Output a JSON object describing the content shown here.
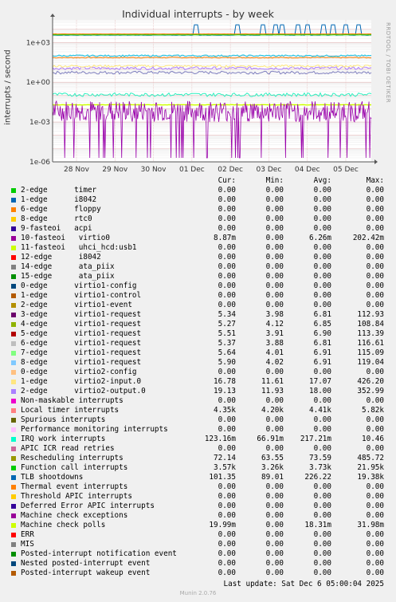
{
  "title": "Individual interrupts - by week",
  "ylabel": "interrupts / second",
  "side_label": "RRDTOOL / TOBI OETIKER",
  "legend_headers": {
    "cur": "Cur:",
    "min": "Min:",
    "avg": "Avg:",
    "max": "Max:"
  },
  "last_update": "Last update: Sat Dec  6 05:00:04 2025",
  "footer": "Munin 2.0.76",
  "chart_data": {
    "type": "line",
    "scale": "log",
    "title": "Individual interrupts - by week",
    "ylabel": "interrupts / second",
    "ylim": [
      1e-06,
      50000
    ],
    "yticks": [
      "1e+03",
      "1e+00",
      "1e-03",
      "1e-06"
    ],
    "x_ticks": [
      "28 Nov",
      "29 Nov",
      "30 Nov",
      "01 Dec",
      "02 Dec",
      "03 Dec",
      "04 Dec",
      "05 Dec"
    ],
    "grid": true,
    "levels": [
      {
        "name": "Local timer interrupts",
        "value": 4350,
        "color": "#ff8000"
      },
      {
        "name": "Rescheduling interrupts",
        "value": 72,
        "color": "#f57900"
      },
      {
        "name": "TLB shootdowns",
        "value": 101,
        "color": "#12c7e6"
      },
      {
        "name": "Function call interrupts",
        "value": 3570,
        "color": "#00cc00"
      },
      {
        "name": "virtio1-request",
        "value": 5.5,
        "color": "#8080c0"
      },
      {
        "name": "virtio2-input.0",
        "value": 16.8,
        "color": "#ffe87a"
      },
      {
        "name": "IRQ work interrupts",
        "value": 0.12,
        "color": "#2af0c0"
      },
      {
        "name": "Machine check polls",
        "value": 0.02,
        "color": "#ccff00"
      },
      {
        "name": "10-fasteoi virtio0",
        "value": 0.0063,
        "color": "#9900aa"
      }
    ]
  },
  "legend": [
    {
      "color": "#00cc00",
      "label": "2-edge      timer",
      "cur": "0.00",
      "min": "0.00",
      "avg": "0.00",
      "max": "0.00"
    },
    {
      "color": "#0066b3",
      "label": "1-edge      i8042",
      "cur": "0.00",
      "min": "0.00",
      "avg": "0.00",
      "max": "0.00"
    },
    {
      "color": "#ff8000",
      "label": "6-edge      floppy",
      "cur": "0.00",
      "min": "0.00",
      "avg": "0.00",
      "max": "0.00"
    },
    {
      "color": "#ffcc00",
      "label": "8-edge      rtc0",
      "cur": "0.00",
      "min": "0.00",
      "avg": "0.00",
      "max": "0.00"
    },
    {
      "color": "#330099",
      "label": "9-fasteoi   acpi",
      "cur": "0.00",
      "min": "0.00",
      "avg": "0.00",
      "max": "0.00"
    },
    {
      "color": "#990099",
      "label": "10-fasteoi   virtio0",
      "cur": "8.87m",
      "min": "0.00",
      "avg": "6.26m",
      "max": "202.42m"
    },
    {
      "color": "#ccff00",
      "label": "11-fasteoi   uhci_hcd:usb1",
      "cur": "0.00",
      "min": "0.00",
      "avg": "0.00",
      "max": "0.00"
    },
    {
      "color": "#ff0000",
      "label": "12-edge      i8042",
      "cur": "0.00",
      "min": "0.00",
      "avg": "0.00",
      "max": "0.00"
    },
    {
      "color": "#808080",
      "label": "14-edge      ata_piix",
      "cur": "0.00",
      "min": "0.00",
      "avg": "0.00",
      "max": "0.00"
    },
    {
      "color": "#008f00",
      "label": "15-edge      ata_piix",
      "cur": "0.00",
      "min": "0.00",
      "avg": "0.00",
      "max": "0.00"
    },
    {
      "color": "#00487d",
      "label": "0-edge      virtio1-config",
      "cur": "0.00",
      "min": "0.00",
      "avg": "0.00",
      "max": "0.00"
    },
    {
      "color": "#b35a00",
      "label": "1-edge      virtio1-control",
      "cur": "0.00",
      "min": "0.00",
      "avg": "0.00",
      "max": "0.00"
    },
    {
      "color": "#b38f00",
      "label": "2-edge      virtio1-event",
      "cur": "0.00",
      "min": "0.00",
      "avg": "0.00",
      "max": "0.00"
    },
    {
      "color": "#6b006b",
      "label": "3-edge      virtio1-request",
      "cur": "5.34",
      "min": "3.98",
      "avg": "6.81",
      "max": "112.93"
    },
    {
      "color": "#8fb300",
      "label": "4-edge      virtio1-request",
      "cur": "5.27",
      "min": "4.12",
      "avg": "6.85",
      "max": "108.84"
    },
    {
      "color": "#b30000",
      "label": "5-edge      virtio1-request",
      "cur": "5.51",
      "min": "3.91",
      "avg": "6.90",
      "max": "113.39"
    },
    {
      "color": "#bebebe",
      "label": "6-edge      virtio1-request",
      "cur": "5.37",
      "min": "3.88",
      "avg": "6.81",
      "max": "116.61"
    },
    {
      "color": "#80ff80",
      "label": "7-edge      virtio1-request",
      "cur": "5.64",
      "min": "4.01",
      "avg": "6.91",
      "max": "115.09"
    },
    {
      "color": "#80c9ff",
      "label": "8-edge      virtio1-request",
      "cur": "5.90",
      "min": "4.02",
      "avg": "6.91",
      "max": "119.04"
    },
    {
      "color": "#ffc080",
      "label": "0-edge      virtio2-config",
      "cur": "0.00",
      "min": "0.00",
      "avg": "0.00",
      "max": "0.00"
    },
    {
      "color": "#ffe680",
      "label": "1-edge      virtio2-input.0",
      "cur": "16.78",
      "min": "11.61",
      "avg": "17.07",
      "max": "426.20"
    },
    {
      "color": "#aa80ff",
      "label": "2-edge      virtio2-output.0",
      "cur": "19.13",
      "min": "11.93",
      "avg": "18.00",
      "max": "352.99"
    },
    {
      "color": "#ee00cc",
      "label": "Non-maskable interrupts",
      "cur": "0.00",
      "min": "0.00",
      "avg": "0.00",
      "max": "0.00"
    },
    {
      "color": "#ff8080",
      "label": "Local timer interrupts",
      "cur": "4.35k",
      "min": "4.20k",
      "avg": "4.41k",
      "max": "5.82k"
    },
    {
      "color": "#666600",
      "label": "Spurious interrupts",
      "cur": "0.00",
      "min": "0.00",
      "avg": "0.00",
      "max": "0.00"
    },
    {
      "color": "#ffbfff",
      "label": "Performance monitoring interrupts",
      "cur": "0.00",
      "min": "0.00",
      "avg": "0.00",
      "max": "0.00"
    },
    {
      "color": "#00ffcc",
      "label": "IRQ work interrupts",
      "cur": "123.16m",
      "min": "66.91m",
      "avg": "217.21m",
      "max": "10.46"
    },
    {
      "color": "#cc6699",
      "label": "APIC ICR read retries",
      "cur": "0.00",
      "min": "0.00",
      "avg": "0.00",
      "max": "0.00"
    },
    {
      "color": "#999900",
      "label": "Rescheduling interrupts",
      "cur": "72.14",
      "min": "63.55",
      "avg": "73.59",
      "max": "485.72"
    },
    {
      "color": "#00cc00",
      "label": "Function call interrupts",
      "cur": "3.57k",
      "min": "3.26k",
      "avg": "3.73k",
      "max": "21.95k"
    },
    {
      "color": "#0066b3",
      "label": "TLB shootdowns",
      "cur": "101.35",
      "min": "89.01",
      "avg": "226.22",
      "max": "19.38k"
    },
    {
      "color": "#ff8000",
      "label": "Thermal event interrupts",
      "cur": "0.00",
      "min": "0.00",
      "avg": "0.00",
      "max": "0.00"
    },
    {
      "color": "#ffcc00",
      "label": "Threshold APIC interrupts",
      "cur": "0.00",
      "min": "0.00",
      "avg": "0.00",
      "max": "0.00"
    },
    {
      "color": "#330099",
      "label": "Deferred Error APIC interrupts",
      "cur": "0.00",
      "min": "0.00",
      "avg": "0.00",
      "max": "0.00"
    },
    {
      "color": "#990099",
      "label": "Machine check exceptions",
      "cur": "0.00",
      "min": "0.00",
      "avg": "0.00",
      "max": "0.00"
    },
    {
      "color": "#ccff00",
      "label": "Machine check polls",
      "cur": "19.99m",
      "min": "0.00",
      "avg": "18.31m",
      "max": "31.98m"
    },
    {
      "color": "#ff0000",
      "label": "ERR",
      "cur": "0.00",
      "min": "0.00",
      "avg": "0.00",
      "max": "0.00"
    },
    {
      "color": "#808080",
      "label": "MIS",
      "cur": "0.00",
      "min": "0.00",
      "avg": "0.00",
      "max": "0.00"
    },
    {
      "color": "#008f00",
      "label": "Posted-interrupt notification event",
      "cur": "0.00",
      "min": "0.00",
      "avg": "0.00",
      "max": "0.00"
    },
    {
      "color": "#00487d",
      "label": "Nested posted-interrupt event",
      "cur": "0.00",
      "min": "0.00",
      "avg": "0.00",
      "max": "0.00"
    },
    {
      "color": "#b35a00",
      "label": "Posted-interrupt wakeup event",
      "cur": "0.00",
      "min": "0.00",
      "avg": "0.00",
      "max": "0.00"
    }
  ]
}
